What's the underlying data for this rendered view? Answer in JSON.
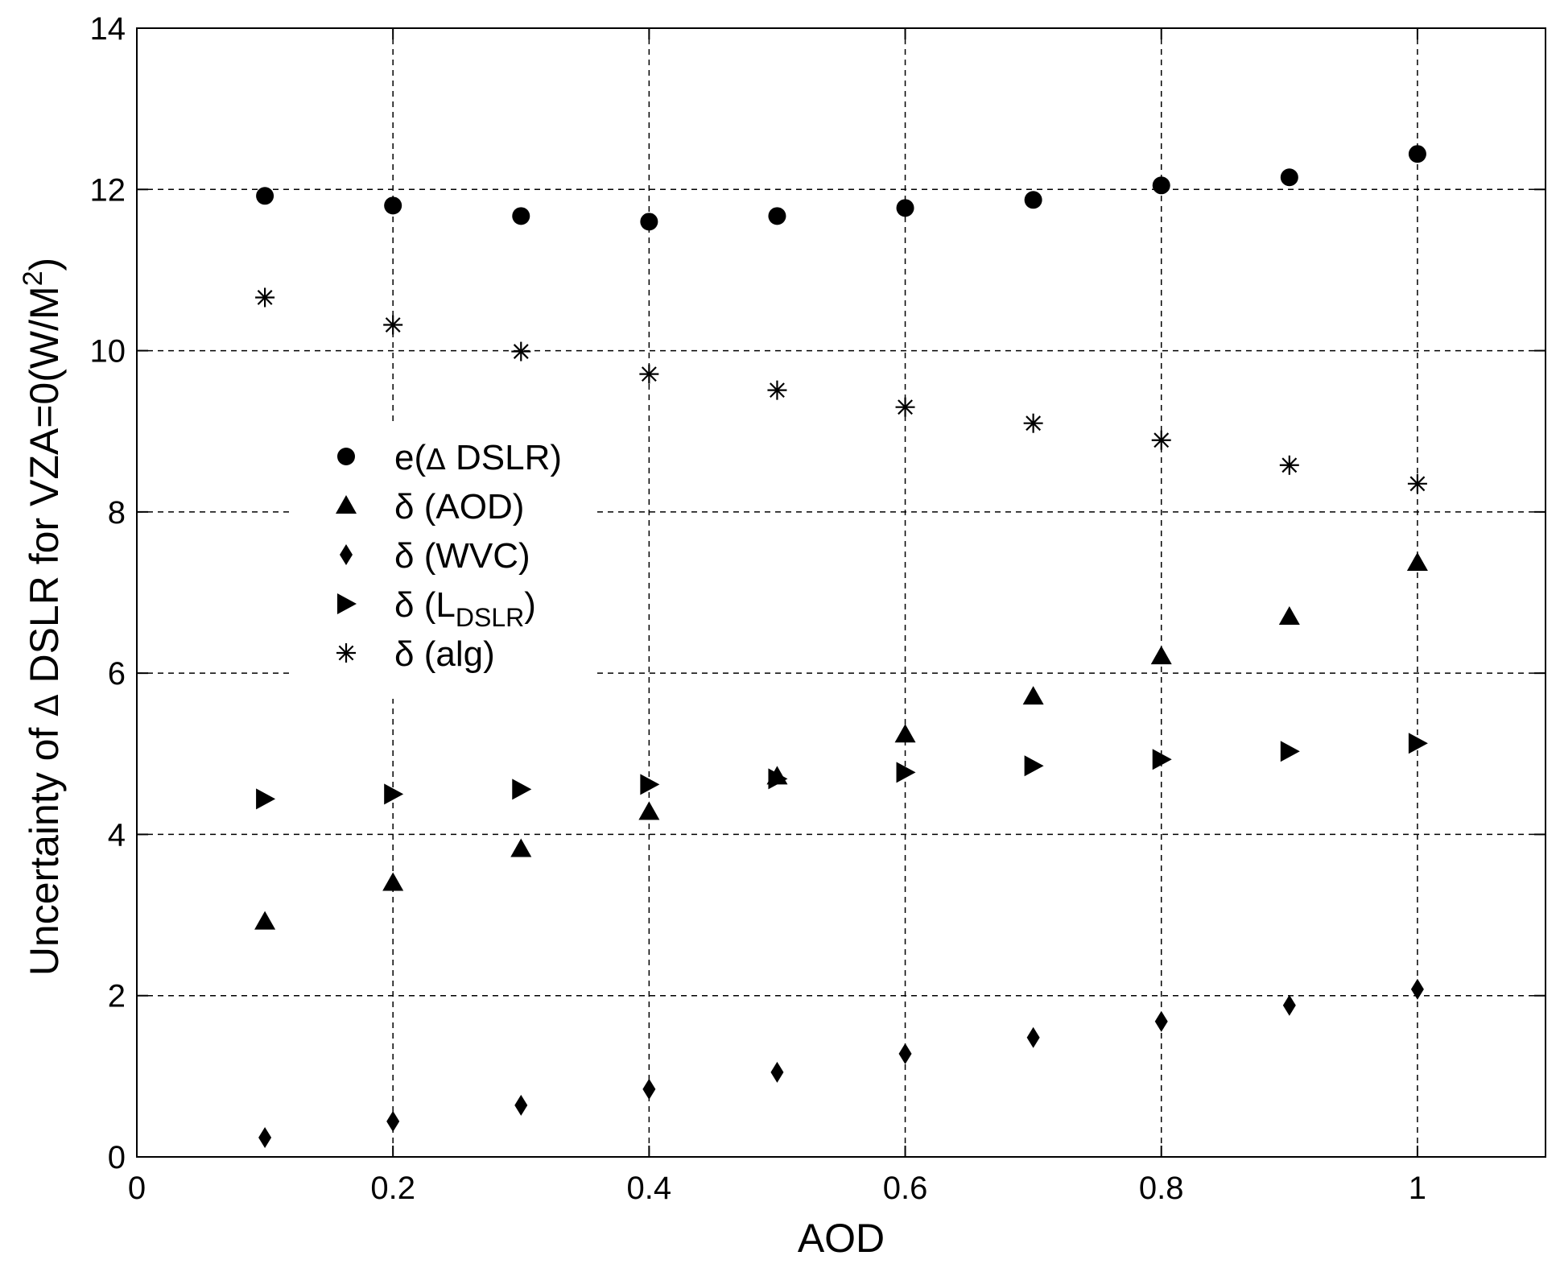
{
  "chart_data": {
    "type": "scatter",
    "title": "",
    "xlabel": "AOD",
    "ylabel_parts": {
      "prefix": "Uncertainty of ",
      "delta": "Δ",
      "middle": " DSLR for VZA=0(W/M",
      "sup": "2",
      "suffix": ")"
    },
    "xlim": [
      0,
      1.1
    ],
    "ylim": [
      0,
      14
    ],
    "xticks": [
      0,
      0.2,
      0.4,
      0.6,
      0.8,
      1
    ],
    "xtick_labels": [
      "0",
      "0.2",
      "0.4",
      "0.6",
      "0.8",
      "1"
    ],
    "yticks": [
      0,
      2,
      4,
      6,
      8,
      10,
      12,
      14
    ],
    "ytick_labels": [
      "0",
      "2",
      "4",
      "6",
      "8",
      "10",
      "12",
      "14"
    ],
    "grid": true,
    "legend_placement": "center-left",
    "x": [
      0.1,
      0.2,
      0.3,
      0.4,
      0.5,
      0.6,
      0.7,
      0.8,
      0.9,
      1.0
    ],
    "series": [
      {
        "name": "e(Δ DSLR)",
        "marker": "circle",
        "legend": {
          "prefix": "e(",
          "delta": "Δ",
          "text": " DSLR)",
          "sub": "",
          "tail": ""
        },
        "values": [
          11.92,
          11.8,
          11.67,
          11.6,
          11.67,
          11.77,
          11.87,
          12.05,
          12.15,
          12.44
        ]
      },
      {
        "name": "δ (AOD)",
        "marker": "triangle-up",
        "legend": {
          "prefix": "δ",
          "delta": "",
          "text": " (AOD)",
          "sub": "",
          "tail": ""
        },
        "values": [
          2.92,
          3.4,
          3.82,
          4.28,
          4.72,
          5.24,
          5.71,
          6.21,
          6.7,
          7.37
        ]
      },
      {
        "name": "δ (WVC)",
        "marker": "diamond",
        "legend": {
          "prefix": "δ",
          "delta": "",
          "text": " (WVC)",
          "sub": "",
          "tail": ""
        },
        "values": [
          0.24,
          0.44,
          0.64,
          0.84,
          1.05,
          1.28,
          1.48,
          1.68,
          1.88,
          2.08
        ]
      },
      {
        "name": "δ (LDSLR)",
        "marker": "triangle-right",
        "legend": {
          "prefix": "δ",
          "delta": "",
          "text": " (L",
          "sub": "DSLR",
          "tail": ")"
        },
        "values": [
          4.44,
          4.5,
          4.56,
          4.62,
          4.69,
          4.77,
          4.85,
          4.93,
          5.03,
          5.13
        ]
      },
      {
        "name": "δ (alg)",
        "marker": "asterisk",
        "legend": {
          "prefix": "δ",
          "delta": "",
          "text": " (alg)",
          "sub": "",
          "tail": ""
        },
        "values": [
          10.66,
          10.32,
          9.99,
          9.71,
          9.51,
          9.3,
          9.1,
          8.89,
          8.58,
          8.35
        ]
      }
    ]
  }
}
